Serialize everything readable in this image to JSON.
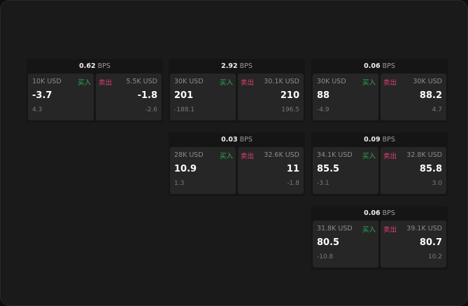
{
  "labels": {
    "unit": "BPS",
    "buy": "买入",
    "sell": "卖出"
  },
  "colors": {
    "buy": "#2fae5c",
    "sell": "#e0436e"
  },
  "quotes": [
    {
      "spread": "0.62",
      "buy": {
        "size": "10K USD",
        "price": "-3.7",
        "change": "4.3"
      },
      "sell": {
        "size": "5.5K USD",
        "price": "-1.8",
        "change": "-2.6"
      }
    },
    {
      "spread": "2.92",
      "buy": {
        "size": "30K USD",
        "price": "201",
        "change": "-188.1"
      },
      "sell": {
        "size": "30.1K USD",
        "price": "210",
        "change": "196.5"
      }
    },
    {
      "spread": "0.06",
      "buy": {
        "size": "30K USD",
        "price": "88",
        "change": "-4.9"
      },
      "sell": {
        "size": "30K USD",
        "price": "88.2",
        "change": "4.7"
      }
    },
    {
      "spread": "0.03",
      "buy": {
        "size": "28K USD",
        "price": "10.9",
        "change": "1.3"
      },
      "sell": {
        "size": "32.6K USD",
        "price": "11",
        "change": "-1.8"
      }
    },
    {
      "spread": "0.09",
      "buy": {
        "size": "34.1K USD",
        "price": "85.5",
        "change": "-3.1"
      },
      "sell": {
        "size": "32.8K USD",
        "price": "85.8",
        "change": "3.0"
      }
    },
    {
      "spread": "0.06",
      "buy": {
        "size": "31.8K USD",
        "price": "80.5",
        "change": "-10.8"
      },
      "sell": {
        "size": "39.1K USD",
        "price": "80.7",
        "change": "10.2"
      }
    }
  ]
}
